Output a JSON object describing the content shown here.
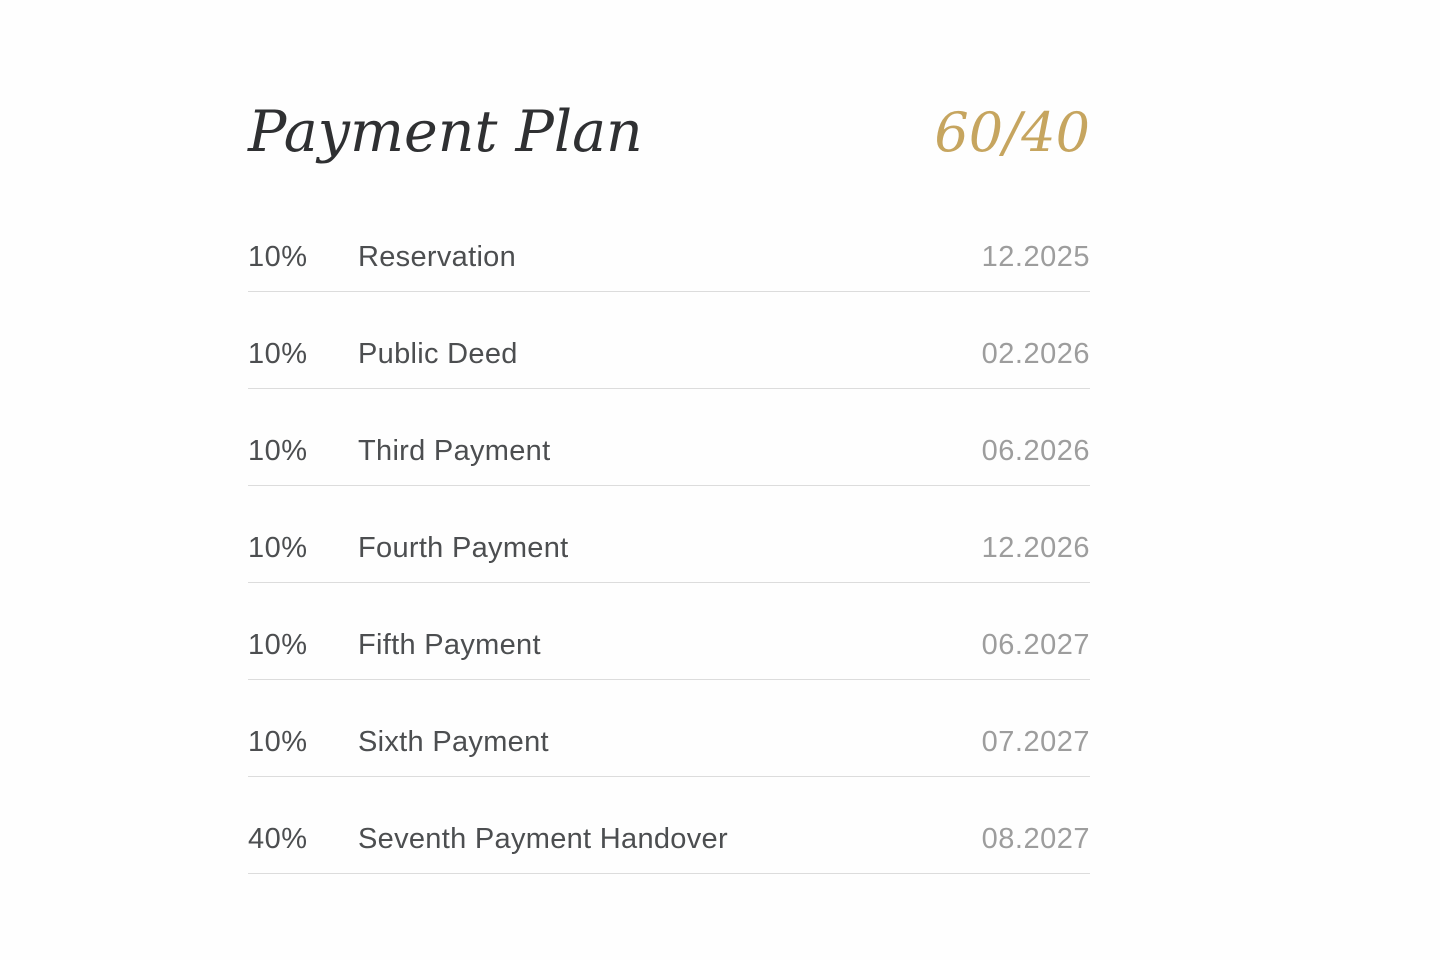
{
  "header": {
    "title": "Payment Plan",
    "ratio": "60/40"
  },
  "colors": {
    "accent_gold": "#C6A55F",
    "title_text": "#2F3032",
    "row_text": "#4C4E50",
    "date_text": "#9D9D9D",
    "divider": "#DCDCDC",
    "background": "#FEFEFE"
  },
  "rows": [
    {
      "percent": "10%",
      "label": "Reservation",
      "date": "12.2025"
    },
    {
      "percent": "10%",
      "label": "Public Deed",
      "date": "02.2026"
    },
    {
      "percent": "10%",
      "label": "Third Payment",
      "date": "06.2026"
    },
    {
      "percent": "10%",
      "label": "Fourth Payment",
      "date": "12.2026"
    },
    {
      "percent": "10%",
      "label": "Fifth Payment",
      "date": "06.2027"
    },
    {
      "percent": "10%",
      "label": "Sixth Payment",
      "date": "07.2027"
    },
    {
      "percent": "40%",
      "label": "Seventh Payment Handover",
      "date": "08.2027"
    }
  ]
}
